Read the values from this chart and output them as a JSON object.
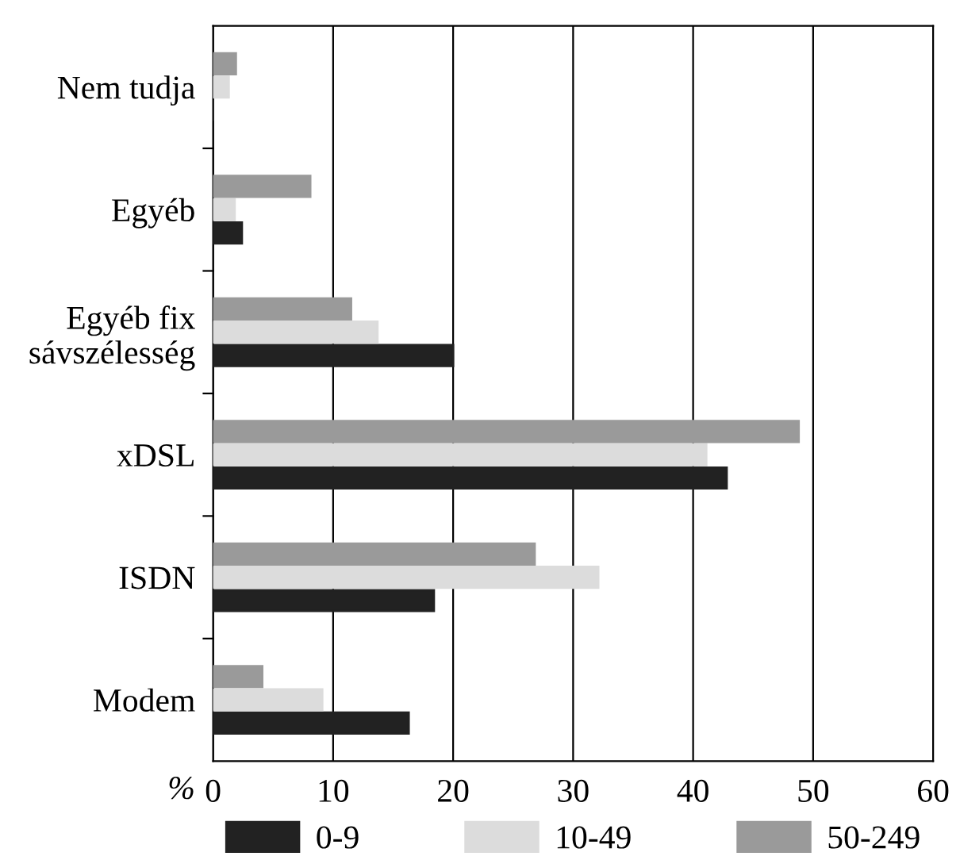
{
  "chart_data": {
    "type": "bar",
    "orientation": "horizontal",
    "xlabel": "%",
    "categories": [
      "Nem tudja",
      "Egyéb",
      "Egyéb fix\nsávszélesség",
      "xDSL",
      "ISDN",
      "Modem"
    ],
    "series": [
      {
        "name": "0-9",
        "color": "#222222",
        "values": [
          0,
          2.4,
          20,
          42.8,
          18.4,
          16.3
        ]
      },
      {
        "name": "10-49",
        "color": "#dcdcdc",
        "values": [
          1.3,
          1.8,
          13.7,
          41.1,
          32.1,
          9.1
        ]
      },
      {
        "name": "50-249",
        "color": "#9a9a9a",
        "values": [
          1.9,
          8.1,
          11.5,
          48.8,
          26.8,
          4.1
        ]
      }
    ],
    "xlim": [
      0,
      60
    ],
    "xticks": [
      0,
      10,
      20,
      30,
      40,
      50,
      60
    ],
    "grid": "x",
    "legend": "bottom"
  }
}
